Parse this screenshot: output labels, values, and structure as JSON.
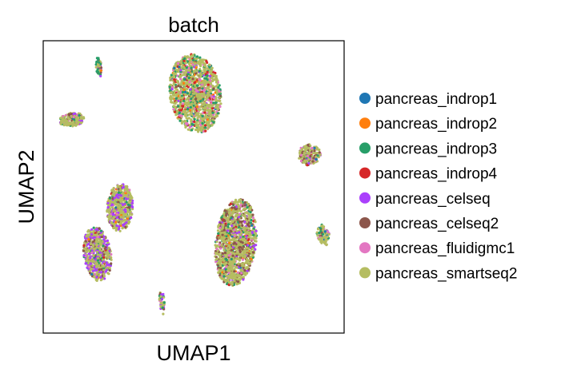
{
  "chart_data": {
    "type": "scatter",
    "title": "batch",
    "xlabel": "UMAP1",
    "ylabel": "UMAP2",
    "xlim": [
      0,
      100
    ],
    "ylim": [
      0,
      100
    ],
    "grid": false,
    "ticks": false,
    "legend_position": "right",
    "series": [
      {
        "name": "pancreas_indrop1",
        "color": "#1f77b4"
      },
      {
        "name": "pancreas_indrop2",
        "color": "#ff7f0e"
      },
      {
        "name": "pancreas_indrop3",
        "color": "#279e68"
      },
      {
        "name": "pancreas_indrop4",
        "color": "#d62728"
      },
      {
        "name": "pancreas_celseq",
        "color": "#aa40fc"
      },
      {
        "name": "pancreas_celseq2",
        "color": "#8c564b"
      },
      {
        "name": "pancreas_fluidigmc1",
        "color": "#e377c2"
      },
      {
        "name": "pancreas_smartseq2",
        "color": "#b5bd61"
      }
    ],
    "clusters": [
      {
        "cx": 50.5,
        "cy": 82,
        "rx": 8.5,
        "ry": 13.5,
        "rot": 8,
        "n": 1400,
        "weights": [
          1,
          2,
          12,
          8,
          3,
          4,
          10,
          60
        ]
      },
      {
        "cx": 18,
        "cy": 27,
        "rx": 4.5,
        "ry": 9.5,
        "rot": 8,
        "n": 650,
        "weights": [
          1,
          1,
          5,
          1,
          28,
          14,
          4,
          46
        ]
      },
      {
        "cx": 25.5,
        "cy": 43,
        "rx": 4.3,
        "ry": 8.2,
        "rot": -3,
        "n": 550,
        "weights": [
          1,
          3,
          6,
          1,
          16,
          8,
          4,
          61
        ]
      },
      {
        "cx": 64,
        "cy": 31,
        "rx": 6.8,
        "ry": 15,
        "rot": -6,
        "n": 1400,
        "weights": [
          1,
          1,
          8,
          2,
          6,
          20,
          6,
          56
        ]
      },
      {
        "cx": 9.5,
        "cy": 73,
        "rx": 4.2,
        "ry": 2.3,
        "rot": 10,
        "n": 180,
        "weights": [
          1,
          1,
          6,
          1,
          6,
          14,
          10,
          61
        ]
      },
      {
        "cx": 88.5,
        "cy": 61,
        "rx": 3.7,
        "ry": 3.7,
        "rot": -30,
        "n": 200,
        "weights": [
          2,
          1,
          8,
          1,
          4,
          18,
          14,
          52
        ]
      },
      {
        "cx": 93,
        "cy": 33.5,
        "rx": 2.1,
        "ry": 3.6,
        "rot": 12,
        "n": 90,
        "weights": [
          3,
          1,
          8,
          1,
          6,
          6,
          6,
          69
        ]
      },
      {
        "cx": 18.5,
        "cy": 91,
        "rx": 0.9,
        "ry": 3.5,
        "rot": 5,
        "n": 60,
        "weights": [
          1,
          1,
          40,
          1,
          10,
          6,
          6,
          35
        ]
      },
      {
        "cx": 39.5,
        "cy": 10.5,
        "rx": 0.8,
        "ry": 4.2,
        "rot": 5,
        "n": 50,
        "weights": [
          1,
          1,
          8,
          1,
          45,
          6,
          6,
          32
        ]
      }
    ]
  }
}
